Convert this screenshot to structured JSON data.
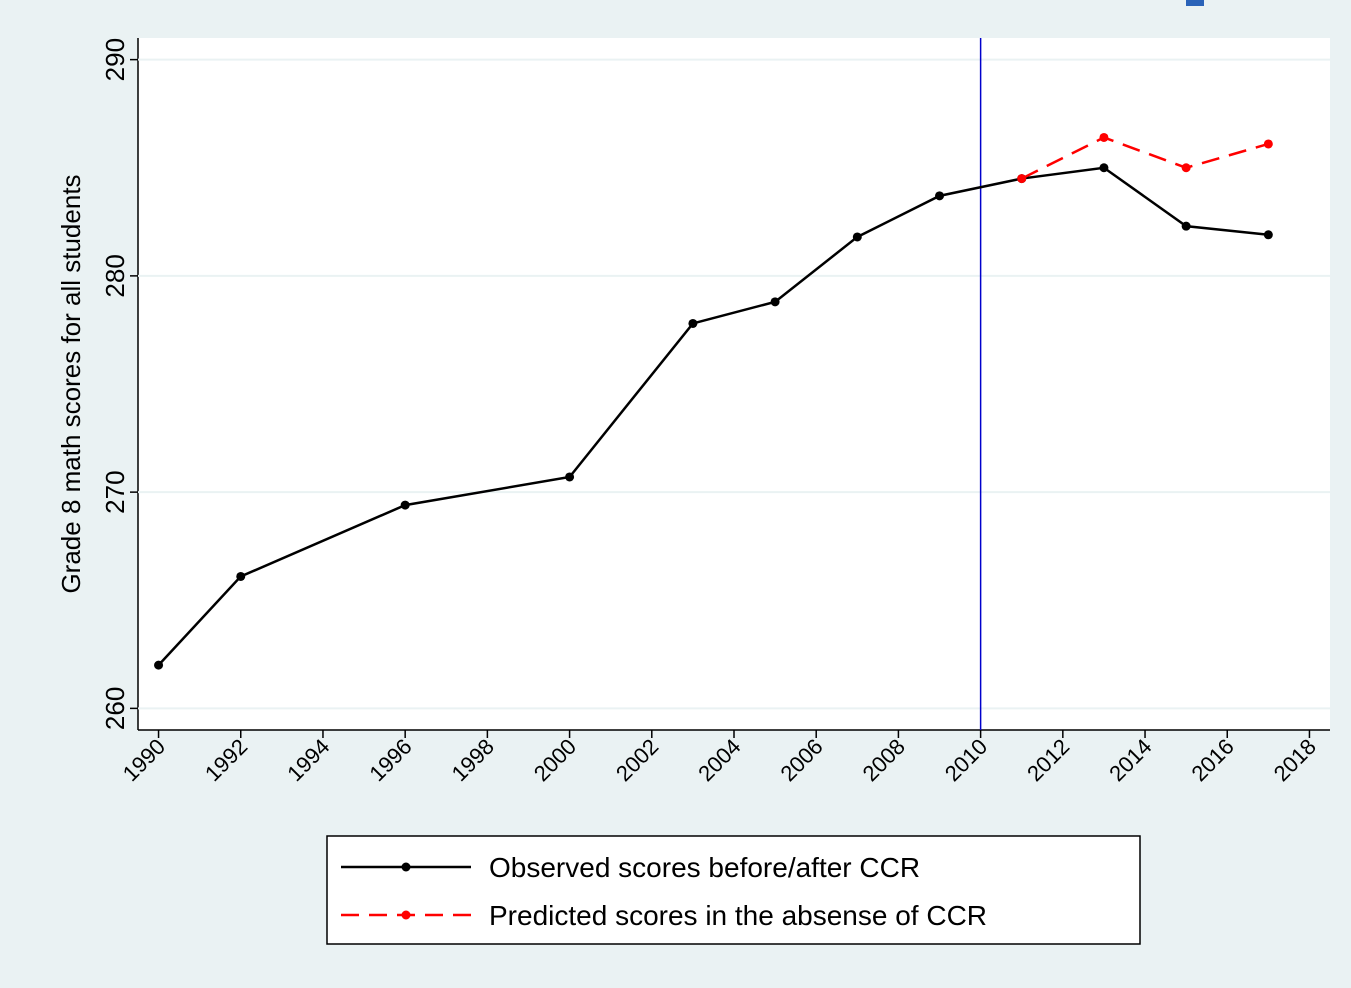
{
  "chart_data": {
    "type": "line",
    "ylabel": "Grade 8 math scores for all students",
    "x": [
      1990,
      1992,
      1996,
      2000,
      2003,
      2005,
      2007,
      2009,
      2011,
      2013,
      2015,
      2017
    ],
    "series": [
      {
        "name": "Observed scores before/after CCR",
        "color": "#000000",
        "dashed": false,
        "values": [
          262.0,
          266.1,
          269.4,
          270.7,
          277.8,
          278.8,
          281.8,
          283.7,
          284.5,
          285.0,
          282.3,
          281.9
        ]
      },
      {
        "name": "Predicted scores in the absense of CCR",
        "color": "#ff0000",
        "dashed": true,
        "values": [
          null,
          null,
          null,
          null,
          null,
          null,
          null,
          null,
          284.5,
          286.4,
          285.0,
          286.1
        ]
      }
    ],
    "xlim": [
      1989.5,
      2018.5
    ],
    "xticks": [
      1990,
      1992,
      1994,
      1996,
      1998,
      2000,
      2002,
      2004,
      2006,
      2008,
      2010,
      2012,
      2014,
      2016,
      2018
    ],
    "ylim": [
      259,
      291
    ],
    "yticks": [
      260,
      270,
      280,
      290
    ],
    "xline": 2010,
    "xline_color": "#0000cc",
    "grid": true,
    "legend": "bottom"
  }
}
